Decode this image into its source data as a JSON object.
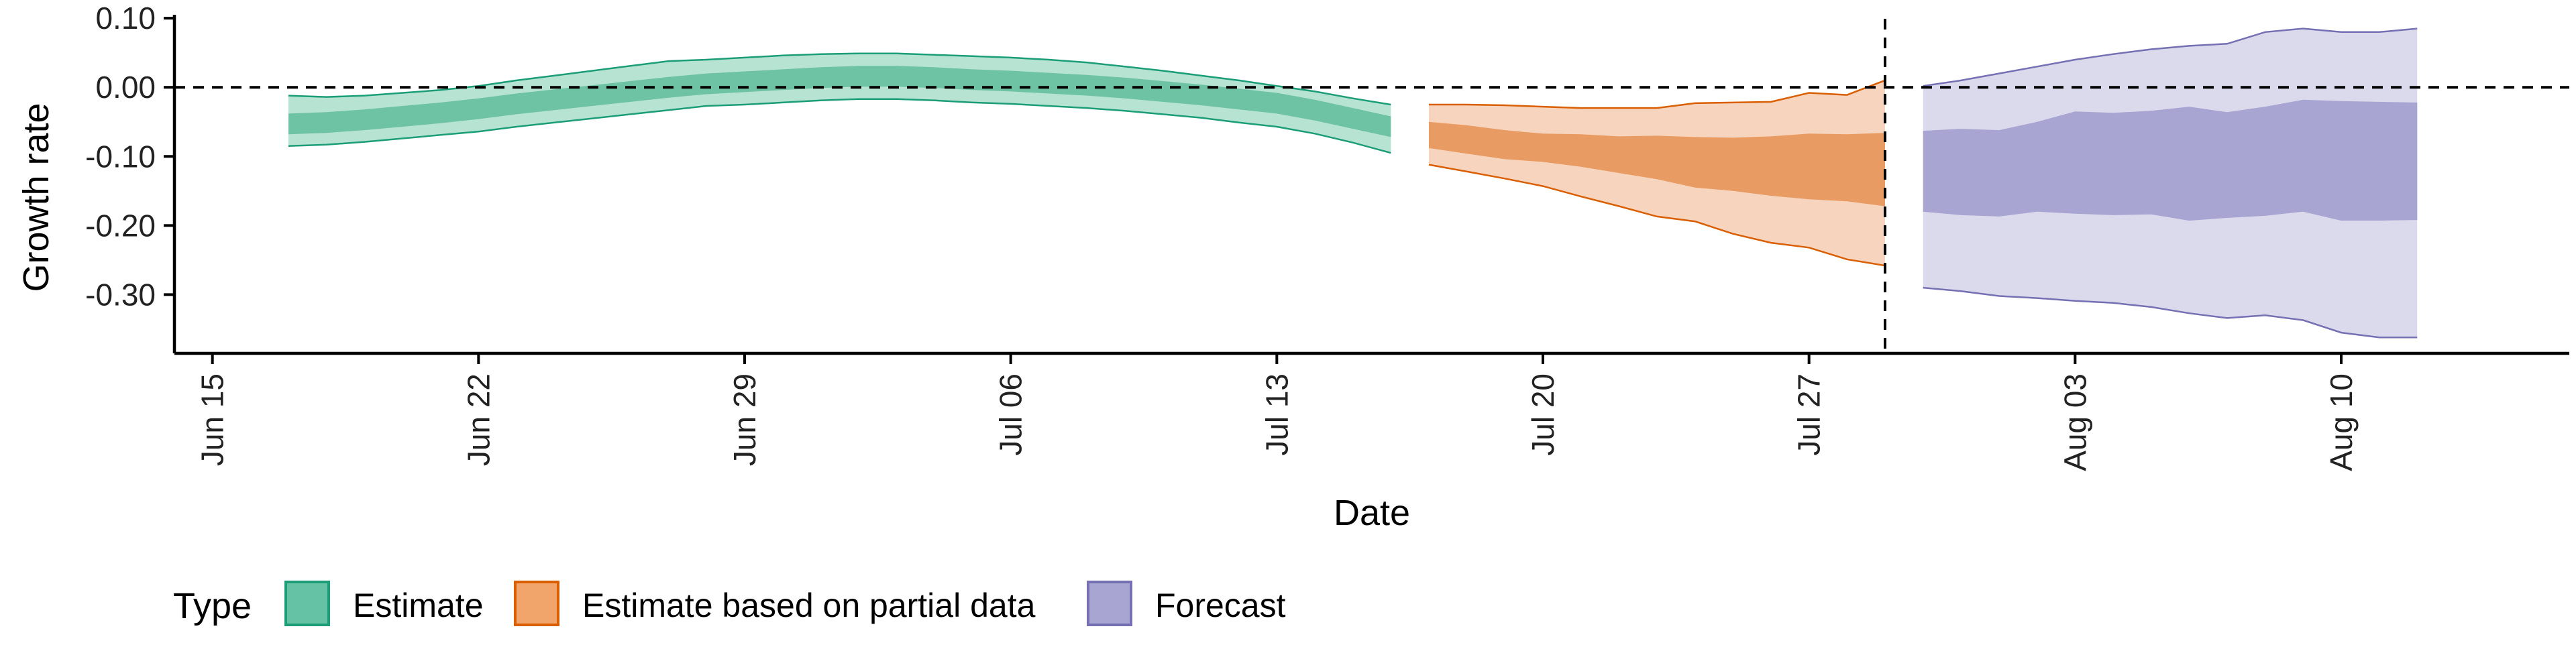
{
  "chart_data": {
    "type": "area",
    "title": "",
    "xlabel": "Date",
    "ylabel": "Growth rate",
    "x_axis": {
      "type": "date",
      "range": [
        "2020-06-14",
        "2020-08-16"
      ],
      "ticks": [
        {
          "date": "2020-06-15",
          "label": "Jun 15"
        },
        {
          "date": "2020-06-22",
          "label": "Jun 22"
        },
        {
          "date": "2020-06-29",
          "label": "Jun 29"
        },
        {
          "date": "2020-07-06",
          "label": "Jul 06"
        },
        {
          "date": "2020-07-13",
          "label": "Jul 13"
        },
        {
          "date": "2020-07-20",
          "label": "Jul 20"
        },
        {
          "date": "2020-07-27",
          "label": "Jul 27"
        },
        {
          "date": "2020-08-03",
          "label": "Aug 03"
        },
        {
          "date": "2020-08-10",
          "label": "Aug 10"
        }
      ]
    },
    "y_axis": {
      "range": [
        -0.385,
        0.105
      ],
      "ticks": [
        {
          "value": 0.1,
          "label": "0.10"
        },
        {
          "value": 0.0,
          "label": "0.00"
        },
        {
          "value": -0.1,
          "label": "-0.10"
        },
        {
          "value": -0.2,
          "label": "-0.20"
        },
        {
          "value": -0.3,
          "label": "-0.30"
        }
      ]
    },
    "grid": false,
    "reference_lines": [
      {
        "axis": "y",
        "value": 0,
        "style": "dashed"
      },
      {
        "axis": "x",
        "date": "2020-07-29",
        "style": "dashed"
      }
    ],
    "legend": {
      "position": "bottom-left",
      "title": "Type",
      "entries": [
        {
          "label": "Estimate",
          "fill": "#66c2a5",
          "stroke": "#1b9e77"
        },
        {
          "label": "Estimate based on partial data",
          "fill": "#f1a56a",
          "stroke": "#d95f02"
        },
        {
          "label": "Forecast",
          "fill": "#a8a5d2",
          "stroke": "#7570b3"
        }
      ]
    },
    "series": [
      {
        "name": "Estimate",
        "colors": {
          "line": "#1b9e77",
          "outer": "#b7e3d3",
          "inner": "#6fc3a5"
        },
        "x": [
          "2020-06-17",
          "2020-06-18",
          "2020-06-19",
          "2020-06-20",
          "2020-06-21",
          "2020-06-22",
          "2020-06-23",
          "2020-06-24",
          "2020-06-25",
          "2020-06-26",
          "2020-06-27",
          "2020-06-28",
          "2020-06-29",
          "2020-06-30",
          "2020-07-01",
          "2020-07-02",
          "2020-07-03",
          "2020-07-04",
          "2020-07-05",
          "2020-07-06",
          "2020-07-07",
          "2020-07-08",
          "2020-07-09",
          "2020-07-10",
          "2020-07-11",
          "2020-07-12",
          "2020-07-13",
          "2020-07-14",
          "2020-07-15",
          "2020-07-16"
        ],
        "outer_lower": [
          -0.085,
          -0.083,
          -0.079,
          -0.074,
          -0.069,
          -0.064,
          -0.057,
          -0.051,
          -0.045,
          -0.039,
          -0.033,
          -0.027,
          -0.025,
          -0.022,
          -0.019,
          -0.017,
          -0.017,
          -0.019,
          -0.022,
          -0.024,
          -0.027,
          -0.03,
          -0.034,
          -0.039,
          -0.044,
          -0.051,
          -0.057,
          -0.067,
          -0.08,
          -0.095
        ],
        "inner_lower": [
          -0.068,
          -0.066,
          -0.062,
          -0.057,
          -0.052,
          -0.046,
          -0.039,
          -0.033,
          -0.027,
          -0.021,
          -0.015,
          -0.01,
          -0.007,
          -0.004,
          -0.001,
          0.001,
          0.001,
          -0.001,
          -0.004,
          -0.006,
          -0.009,
          -0.012,
          -0.016,
          -0.021,
          -0.026,
          -0.032,
          -0.038,
          -0.048,
          -0.06,
          -0.072
        ],
        "inner_upper": [
          -0.038,
          -0.036,
          -0.032,
          -0.027,
          -0.022,
          -0.016,
          -0.009,
          -0.003,
          0.003,
          0.009,
          0.015,
          0.02,
          0.023,
          0.026,
          0.029,
          0.031,
          0.031,
          0.029,
          0.026,
          0.024,
          0.021,
          0.018,
          0.014,
          0.009,
          0.004,
          -0.002,
          -0.008,
          -0.018,
          -0.03,
          -0.042
        ],
        "outer_upper": [
          -0.012,
          -0.014,
          -0.012,
          -0.008,
          -0.004,
          0.002,
          0.01,
          0.017,
          0.024,
          0.031,
          0.038,
          0.04,
          0.043,
          0.046,
          0.048,
          0.049,
          0.049,
          0.047,
          0.045,
          0.043,
          0.04,
          0.036,
          0.03,
          0.024,
          0.017,
          0.01,
          0.002,
          -0.006,
          -0.016,
          -0.025
        ]
      },
      {
        "name": "Estimate based on partial data",
        "colors": {
          "line": "#d95f02",
          "outer": "#f7d4bd",
          "inner": "#e89b62"
        },
        "x": [
          "2020-07-17",
          "2020-07-18",
          "2020-07-19",
          "2020-07-20",
          "2020-07-21",
          "2020-07-22",
          "2020-07-23",
          "2020-07-24",
          "2020-07-25",
          "2020-07-26",
          "2020-07-27",
          "2020-07-28",
          "2020-07-29"
        ],
        "outer_lower": [
          -0.112,
          -0.122,
          -0.132,
          -0.143,
          -0.158,
          -0.172,
          -0.187,
          -0.194,
          -0.212,
          -0.225,
          -0.232,
          -0.249,
          -0.258
        ],
        "inner_lower": [
          -0.088,
          -0.096,
          -0.104,
          -0.108,
          -0.115,
          -0.124,
          -0.133,
          -0.145,
          -0.15,
          -0.157,
          -0.162,
          -0.165,
          -0.172
        ],
        "inner_upper": [
          -0.05,
          -0.055,
          -0.062,
          -0.067,
          -0.068,
          -0.071,
          -0.07,
          -0.072,
          -0.073,
          -0.071,
          -0.067,
          -0.068,
          -0.066
        ],
        "outer_upper": [
          -0.025,
          -0.025,
          -0.026,
          -0.028,
          -0.03,
          -0.03,
          -0.03,
          -0.023,
          -0.022,
          -0.021,
          -0.008,
          -0.011,
          0.01
        ]
      },
      {
        "name": "Forecast",
        "colors": {
          "line": "#7570b3",
          "outer": "#dbdaec",
          "inner": "#a8a5d2"
        },
        "x": [
          "2020-07-30",
          "2020-07-31",
          "2020-08-01",
          "2020-08-02",
          "2020-08-03",
          "2020-08-04",
          "2020-08-05",
          "2020-08-06",
          "2020-08-07",
          "2020-08-08",
          "2020-08-09",
          "2020-08-10",
          "2020-08-11",
          "2020-08-12"
        ],
        "outer_lower": [
          -0.29,
          -0.295,
          -0.302,
          -0.305,
          -0.309,
          -0.312,
          -0.318,
          -0.327,
          -0.334,
          -0.33,
          -0.337,
          -0.355,
          -0.362,
          -0.362
        ],
        "inner_lower": [
          -0.18,
          -0.185,
          -0.187,
          -0.18,
          -0.183,
          -0.185,
          -0.184,
          -0.193,
          -0.189,
          -0.186,
          -0.18,
          -0.193,
          -0.193,
          -0.192
        ],
        "inner_upper": [
          -0.063,
          -0.06,
          -0.062,
          -0.05,
          -0.035,
          -0.037,
          -0.034,
          -0.028,
          -0.036,
          -0.028,
          -0.018,
          -0.02,
          -0.021,
          -0.022
        ],
        "outer_upper": [
          0.002,
          0.01,
          0.02,
          0.03,
          0.04,
          0.048,
          0.055,
          0.06,
          0.063,
          0.08,
          0.085,
          0.08,
          0.08,
          0.085
        ]
      }
    ]
  }
}
